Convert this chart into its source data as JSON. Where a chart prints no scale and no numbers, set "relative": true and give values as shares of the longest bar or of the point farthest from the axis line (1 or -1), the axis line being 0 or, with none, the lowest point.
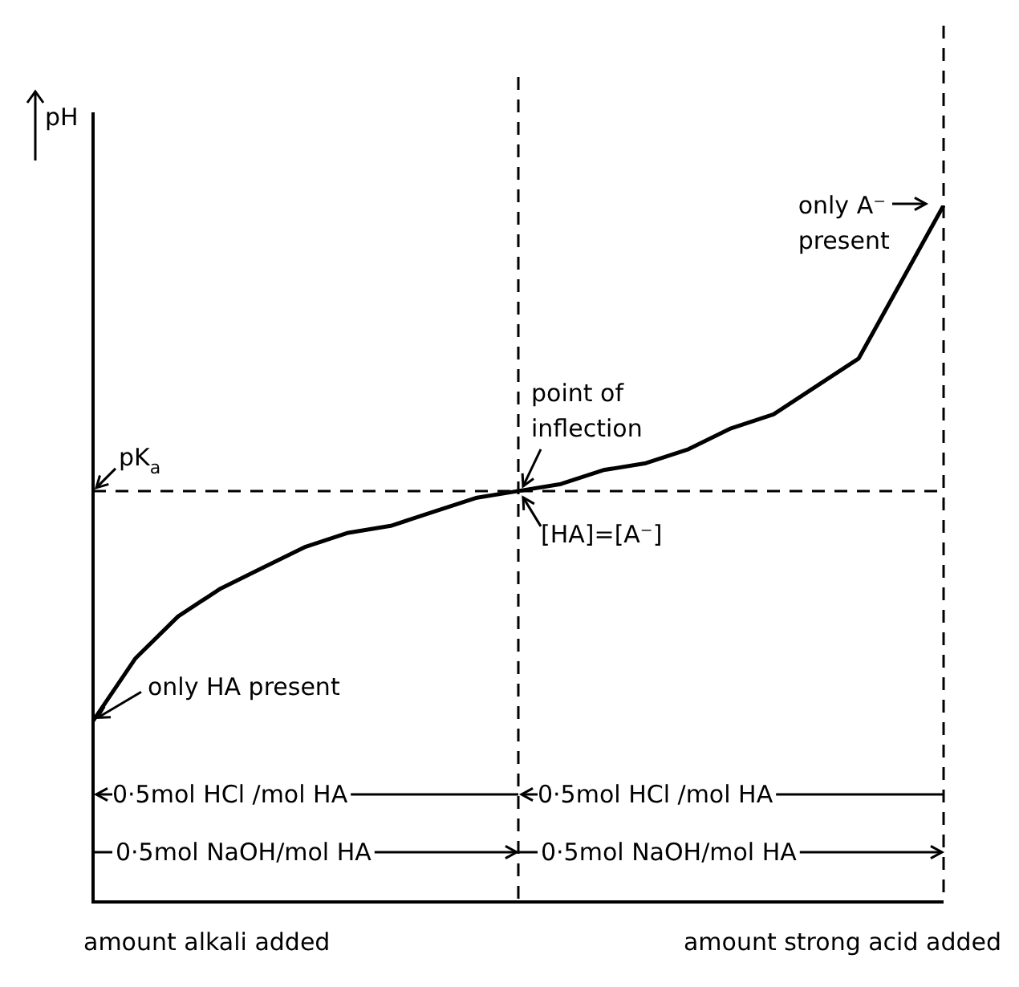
{
  "chart_data": {
    "type": "line",
    "relative": true,
    "ylabel": "pH",
    "xlabel": "amount alkali added",
    "categories": [
      null,
      null,
      null,
      null,
      null,
      null,
      null,
      null,
      null,
      null,
      null,
      null,
      null,
      null,
      null,
      null,
      null,
      null,
      null,
      null,
      null
    ],
    "legend": false,
    "marker": "none",
    "line_style": "solid",
    "series": [
      {
        "color": "#000000",
        "values": [
          0.26,
          0.35,
          0.41,
          0.45,
          0.48,
          0.51,
          0.53,
          0.54,
          0.56,
          0.58,
          0.59,
          0.6,
          0.62,
          0.63,
          0.65,
          0.68,
          0.7,
          0.74,
          0.78,
          0.89,
          1
        ]
      }
    ],
    "annotations": [
      "pK$_{a}$",
      "only HA present",
      "point of inflection",
      "[HA]=[A⁻]",
      "only A⁻ present",
      "0·5mol HCl /mol HA",
      "0·5mol HCl /mol HA",
      "0·5mol NaOH/mol HA",
      "0·5mol NaOH/mol HA",
      "amount strong acid added"
    ]
  }
}
